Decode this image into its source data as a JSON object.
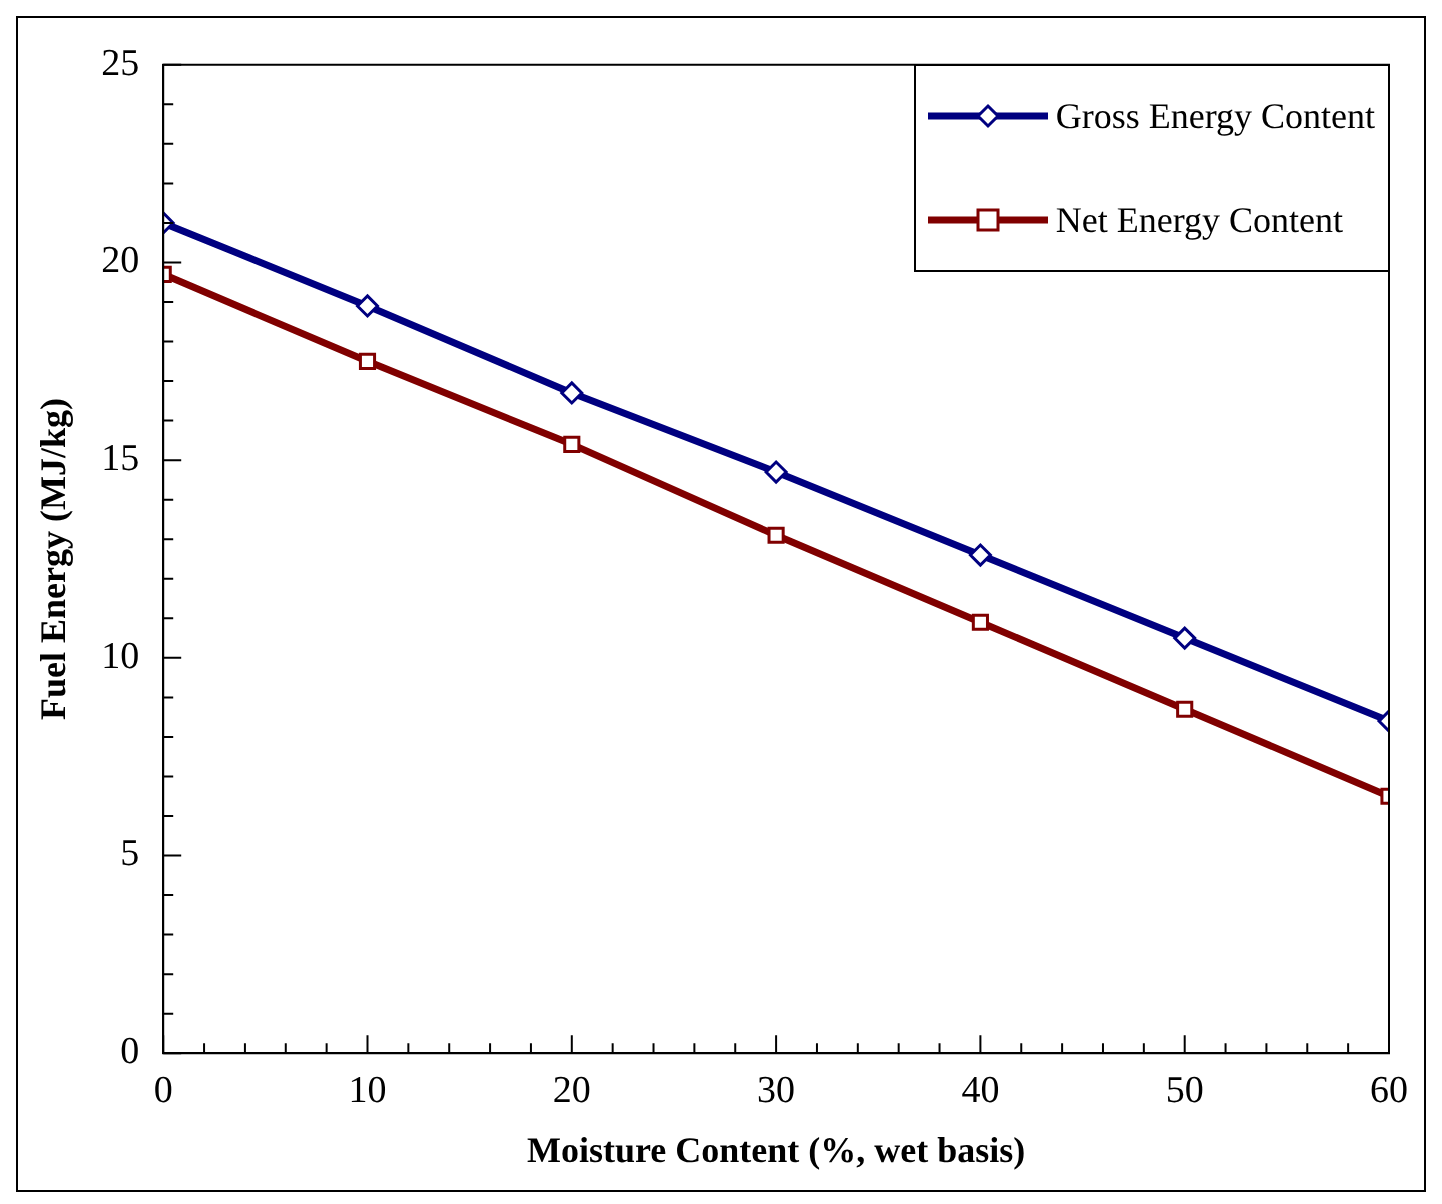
{
  "chart_data": {
    "type": "line",
    "xlabel": "Moisture Content (%, wet basis)",
    "ylabel": "Fuel Energy (MJ/kg)",
    "x": [
      0,
      10,
      20,
      30,
      40,
      50,
      60
    ],
    "series": [
      {
        "name": "Gross Energy Content",
        "color": "#000080",
        "marker": "diamond",
        "values": [
          21.0,
          18.9,
          16.7,
          14.7,
          12.6,
          10.5,
          8.4
        ]
      },
      {
        "name": "Net Energy Content",
        "color": "#800000",
        "marker": "square",
        "values": [
          19.7,
          17.5,
          15.4,
          13.1,
          10.9,
          8.7,
          6.5
        ]
      }
    ],
    "xlim": [
      0,
      60
    ],
    "xticks": [
      0,
      {
        "value": 2,
        "label": null
      },
      {
        "value": 4,
        "label": null
      },
      {
        "value": 6,
        "label": null
      },
      {
        "value": 8,
        "label": null
      },
      10,
      {
        "value": 12,
        "label": null
      },
      {
        "value": 14,
        "label": null
      },
      {
        "value": 16,
        "label": null
      },
      {
        "value": 18,
        "label": null
      },
      20,
      {
        "value": 22,
        "label": null
      },
      {
        "value": 24,
        "label": null
      },
      {
        "value": 26,
        "label": null
      },
      {
        "value": 28,
        "label": null
      },
      30,
      {
        "value": 32,
        "label": null
      },
      {
        "value": 34,
        "label": null
      },
      {
        "value": 36,
        "label": null
      },
      {
        "value": 38,
        "label": null
      },
      40,
      {
        "value": 42,
        "label": null
      },
      {
        "value": 44,
        "label": null
      },
      {
        "value": 46,
        "label": null
      },
      {
        "value": 48,
        "label": null
      },
      50,
      {
        "value": 52,
        "label": null
      },
      {
        "value": 54,
        "label": null
      },
      {
        "value": 56,
        "label": null
      },
      {
        "value": 58,
        "label": null
      },
      60
    ],
    "ylim": [
      0,
      25
    ],
    "yticks": [
      0,
      {
        "value": 1,
        "label": null
      },
      {
        "value": 2,
        "label": null
      },
      {
        "value": 3,
        "label": null
      },
      {
        "value": 4,
        "label": null
      },
      5,
      {
        "value": 6,
        "label": null
      },
      {
        "value": 7,
        "label": null
      },
      {
        "value": 8,
        "label": null
      },
      {
        "value": 9,
        "label": null
      },
      10,
      {
        "value": 11,
        "label": null
      },
      {
        "value": 12,
        "label": null
      },
      {
        "value": 13,
        "label": null
      },
      {
        "value": 14,
        "label": null
      },
      15,
      {
        "value": 16,
        "label": null
      },
      {
        "value": 17,
        "label": null
      },
      {
        "value": 18,
        "label": null
      },
      {
        "value": 19,
        "label": null
      },
      20,
      {
        "value": 21,
        "label": null
      },
      {
        "value": 22,
        "label": null
      },
      {
        "value": 23,
        "label": null
      },
      {
        "value": 24,
        "label": null
      },
      25
    ],
    "grid": false,
    "legend": "top right",
    "line_style": "solid"
  }
}
